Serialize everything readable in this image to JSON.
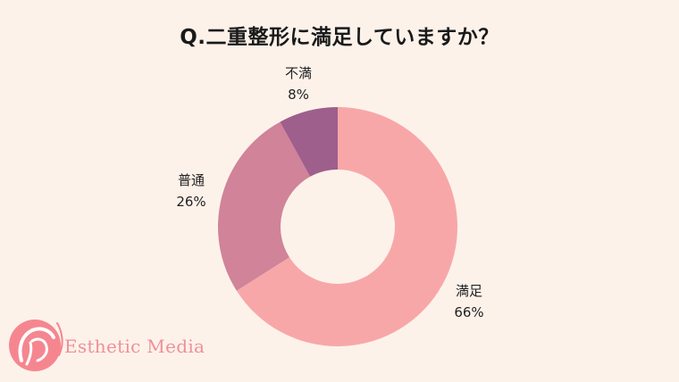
{
  "title": "Q.二重整形に満足していますか？",
  "chart_data": {
    "type": "pie",
    "style": "donut",
    "start": "top",
    "direction": "clockwise",
    "slices": [
      {
        "label": "満足",
        "value": 66,
        "value_label": "66%",
        "color": "#f8a7a8"
      },
      {
        "label": "普通",
        "value": 26,
        "value_label": "26%",
        "color": "#d08399"
      },
      {
        "label": "不満",
        "value": 8,
        "value_label": "8%",
        "color": "#9e5f8c"
      }
    ]
  },
  "brand": {
    "name": "Esthetic Media",
    "color": "#f08f97"
  }
}
